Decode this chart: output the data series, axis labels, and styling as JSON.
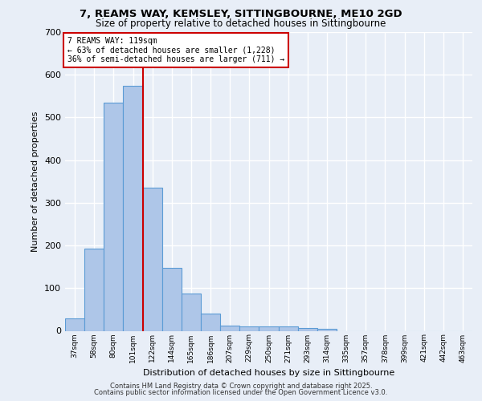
{
  "title_line1": "7, REAMS WAY, KEMSLEY, SITTINGBOURNE, ME10 2GD",
  "title_line2": "Size of property relative to detached houses in Sittingbourne",
  "xlabel": "Distribution of detached houses by size in Sittingbourne",
  "ylabel": "Number of detached properties",
  "categories": [
    "37sqm",
    "58sqm",
    "80sqm",
    "101sqm",
    "122sqm",
    "144sqm",
    "165sqm",
    "186sqm",
    "207sqm",
    "229sqm",
    "250sqm",
    "271sqm",
    "293sqm",
    "314sqm",
    "335sqm",
    "357sqm",
    "378sqm",
    "399sqm",
    "421sqm",
    "442sqm",
    "463sqm"
  ],
  "values": [
    30,
    193,
    535,
    575,
    335,
    147,
    87,
    40,
    12,
    10,
    10,
    10,
    7,
    5,
    0,
    0,
    0,
    0,
    0,
    0,
    0
  ],
  "bar_color": "#aec6e8",
  "bar_edge_color": "#5b9bd5",
  "bar_width": 1.0,
  "vline_index": 3.5,
  "vline_color": "#cc0000",
  "annotation_text": "7 REAMS WAY: 119sqm\n← 63% of detached houses are smaller (1,228)\n36% of semi-detached houses are larger (711) →",
  "annotation_box_color": "#ffffff",
  "annotation_border_color": "#cc0000",
  "ylim": [
    0,
    700
  ],
  "yticks": [
    0,
    100,
    200,
    300,
    400,
    500,
    600,
    700
  ],
  "bg_color": "#e8eef7",
  "plot_bg_color": "#e8eef7",
  "grid_color": "#ffffff",
  "footer_line1": "Contains HM Land Registry data © Crown copyright and database right 2025.",
  "footer_line2": "Contains public sector information licensed under the Open Government Licence v3.0."
}
